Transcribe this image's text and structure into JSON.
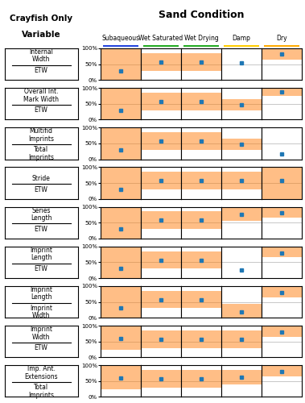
{
  "chart_data": {
    "type": "range",
    "title": "Sand Condition",
    "annotations": [
      "Crayfish Only",
      "Variable"
    ],
    "categories": [
      "Subaqueous",
      "Wet Saturated",
      "Wet Drying",
      "Damp",
      "Dry"
    ],
    "colors": [
      "#2244dd",
      "#22aa22",
      "#22aa22",
      "#ffcc00",
      "#ffaa00"
    ],
    "marker": "square",
    "grid": true,
    "ylim": [
      0,
      100
    ],
    "yticks": [
      {
        "value": 0,
        "label": "0%"
      },
      {
        "value": 50,
        "label": "50%"
      },
      {
        "value": 100,
        "label": "100%"
      }
    ],
    "rows": [
      {
        "label": [
          [
            "Internal",
            "Width"
          ],
          [
            "ETW"
          ]
        ],
        "ranges": [
          [
            0,
            100
          ],
          [
            30,
            85
          ],
          [
            30,
            85
          ],
          [
            0,
            0
          ],
          [
            65,
            100
          ]
        ],
        "values": [
          30,
          57,
          57,
          55,
          82
        ]
      },
      {
        "label": [
          [
            "Overall Int.",
            "Mark Width"
          ],
          [
            "ETW"
          ]
        ],
        "ranges": [
          [
            0,
            100
          ],
          [
            30,
            85
          ],
          [
            30,
            85
          ],
          [
            30,
            65
          ],
          [
            75,
            100
          ]
        ],
        "values": [
          30,
          57,
          57,
          47,
          88
        ]
      },
      {
        "label": [
          [
            "Multifid",
            "Imprints"
          ],
          [
            "Total",
            "Imprints"
          ]
        ],
        "ranges": [
          [
            0,
            100
          ],
          [
            30,
            85
          ],
          [
            30,
            85
          ],
          [
            30,
            65
          ],
          [
            0,
            0
          ]
        ],
        "values": [
          30,
          57,
          57,
          47,
          18
        ]
      },
      {
        "label": [
          [
            "Stride"
          ],
          [
            "ETW"
          ]
        ],
        "ranges": [
          [
            0,
            100
          ],
          [
            30,
            85
          ],
          [
            30,
            85
          ],
          [
            30,
            85
          ],
          [
            0,
            100
          ]
        ],
        "values": [
          30,
          57,
          57,
          57,
          57
        ]
      },
      {
        "label": [
          [
            "Series",
            "Length"
          ],
          [
            "ETW"
          ]
        ],
        "ranges": [
          [
            0,
            100
          ],
          [
            30,
            85
          ],
          [
            30,
            85
          ],
          [
            55,
            100
          ],
          [
            65,
            100
          ]
        ],
        "values": [
          30,
          57,
          57,
          75,
          80
        ]
      },
      {
        "label": [
          [
            "Imprint",
            "Length"
          ],
          [
            "ETW"
          ]
        ],
        "ranges": [
          [
            0,
            100
          ],
          [
            30,
            85
          ],
          [
            30,
            85
          ],
          [
            0,
            0
          ],
          [
            65,
            100
          ]
        ],
        "values": [
          30,
          57,
          57,
          25,
          80
        ]
      },
      {
        "label": [
          [
            "Imprint",
            "Length"
          ],
          [
            "Imprint",
            "Width"
          ]
        ],
        "ranges": [
          [
            0,
            100
          ],
          [
            30,
            85
          ],
          [
            30,
            85
          ],
          [
            0,
            45
          ],
          [
            65,
            100
          ]
        ],
        "values": [
          30,
          57,
          57,
          18,
          80
        ]
      },
      {
        "label": [
          [
            "Imprint",
            "Width"
          ],
          [
            "ETW"
          ]
        ],
        "ranges": [
          [
            25,
            100
          ],
          [
            30,
            85
          ],
          [
            30,
            85
          ],
          [
            30,
            85
          ],
          [
            65,
            100
          ]
        ],
        "values": [
          60,
          57,
          57,
          57,
          80
        ]
      },
      {
        "label": [
          [
            "Imp. Ant.",
            "Extensions"
          ],
          [
            "Total",
            "Imprints"
          ]
        ],
        "ranges": [
          [
            25,
            100
          ],
          [
            30,
            85
          ],
          [
            30,
            85
          ],
          [
            40,
            85
          ],
          [
            65,
            100
          ]
        ],
        "values": [
          60,
          57,
          57,
          62,
          80
        ]
      }
    ]
  }
}
